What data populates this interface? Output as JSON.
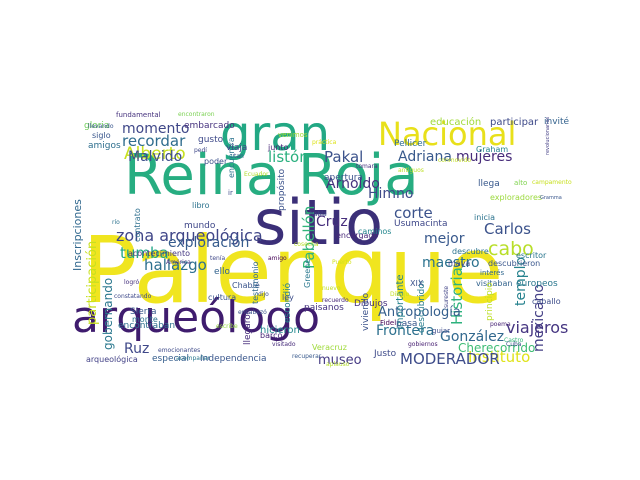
{
  "word_cloud": {
    "words": [
      {
        "text": "Palenque",
        "color": "#f0e51f"
      },
      {
        "text": "Reina Roja",
        "color": "#27ad81"
      },
      {
        "text": "sitio",
        "color": "#3b2f78"
      },
      {
        "text": "gran",
        "color": "#22a884"
      },
      {
        "text": "Nacional",
        "color": "#e8e01a"
      },
      {
        "text": "arqueólogo",
        "color": "#3f1c6e"
      },
      {
        "text": "zona arqueológica",
        "color": "#404688"
      },
      {
        "text": "Alberto",
        "color": "#c7e020"
      },
      {
        "text": "Malvido",
        "color": "#3d4e8a"
      },
      {
        "text": "listón",
        "color": "#2ab07f"
      },
      {
        "text": "Pakal",
        "color": "#3b528b"
      },
      {
        "text": "momento",
        "color": "#3f4788"
      },
      {
        "text": "recordar",
        "color": "#2f6c8e"
      },
      {
        "text": "Adriana",
        "color": "#38598c"
      },
      {
        "text": "mujeres",
        "color": "#472c7a"
      },
      {
        "text": "Arnoldo",
        "color": "#46327e"
      },
      {
        "text": "Himno",
        "color": "#3e4989"
      },
      {
        "text": "Cruz",
        "color": "#472f7d"
      },
      {
        "text": "corte",
        "color": "#3b528b"
      },
      {
        "text": "hallazgo",
        "color": "#2d708e"
      },
      {
        "text": "tumba",
        "color": "#21a685"
      },
      {
        "text": "exploración",
        "color": "#365c8d"
      },
      {
        "text": "Historia",
        "color": "#2db27d"
      },
      {
        "text": "Pabellón",
        "color": "#31b57b"
      },
      {
        "text": "Carlos",
        "color": "#3b528b"
      },
      {
        "text": "cabo",
        "color": "#b8de29"
      },
      {
        "text": "mejor",
        "color": "#38588c"
      },
      {
        "text": "templo",
        "color": "#26828e"
      },
      {
        "text": "mexicano",
        "color": "#433e85"
      },
      {
        "text": "maestro",
        "color": "#2c728e"
      },
      {
        "text": "gobernando",
        "color": "#2a788e"
      },
      {
        "text": "Ruz",
        "color": "#3f4889"
      },
      {
        "text": "Frontera",
        "color": "#2d708e"
      },
      {
        "text": "Antropología",
        "color": "#355f8d"
      },
      {
        "text": "González",
        "color": "#31688e"
      },
      {
        "text": "Cherecorrido",
        "color": "#3dbc74"
      },
      {
        "text": "viajeros",
        "color": "#453581"
      },
      {
        "text": "Instituto",
        "color": "#dfe318"
      },
      {
        "text": "MODERADOR",
        "color": "#3e4c8a"
      },
      {
        "text": "museo",
        "color": "#443983"
      },
      {
        "text": "participación",
        "color": "#c8e020"
      },
      {
        "text": "Inscripciones",
        "color": "#31688e"
      },
      {
        "text": "embarcado",
        "color": "#46327e"
      },
      {
        "text": "educación",
        "color": "#a0da39"
      },
      {
        "text": "participar",
        "color": "#3e4a89"
      },
      {
        "text": "invité",
        "color": "#33628d"
      },
      {
        "text": "gloria",
        "color": "#6ece58"
      },
      {
        "text": "siglo",
        "color": "#39568c"
      },
      {
        "text": "amigos",
        "color": "#2e6f8e"
      },
      {
        "text": "fundamental",
        "color": "#46337e"
      },
      {
        "text": "gusto",
        "color": "#3e4989"
      },
      {
        "text": "encuentra",
        "color": "#2c738e"
      },
      {
        "text": "venimos",
        "color": "#a5db36"
      },
      {
        "text": "Pellicer",
        "color": "#2f6c8e"
      },
      {
        "text": "viaja",
        "color": "#414487"
      },
      {
        "text": "poder",
        "color": "#3c508b"
      },
      {
        "text": "apertura",
        "color": "#3b528b"
      },
      {
        "text": "Usumacinta",
        "color": "#3f4889"
      },
      {
        "text": "inicia",
        "color": "#2c738e"
      },
      {
        "text": "exploradores",
        "color": "#9bd93c"
      },
      {
        "text": "Graham",
        "color": "#25848e"
      },
      {
        "text": "llega",
        "color": "#38588c"
      },
      {
        "text": "propósito",
        "color": "#3b528b"
      },
      {
        "text": "encargado",
        "color": "#482979"
      },
      {
        "text": "Dibujos",
        "color": "#46327e"
      },
      {
        "text": "caminos",
        "color": "#24878e"
      },
      {
        "text": "Chablé",
        "color": "#3a548c"
      },
      {
        "text": "escondió",
        "color": "#27808e"
      },
      {
        "text": "llegaron",
        "color": "#472d7b"
      },
      {
        "text": "paisanos",
        "color": "#463480"
      },
      {
        "text": "Sierra",
        "color": "#38598c"
      },
      {
        "text": "monte",
        "color": "#2c738e"
      },
      {
        "text": "encontraban",
        "color": "#2e6e8e"
      },
      {
        "text": "hicieron",
        "color": "#23898e"
      },
      {
        "text": "visitaban",
        "color": "#33638d"
      },
      {
        "text": "descubrieron",
        "color": "#39568c"
      },
      {
        "text": "descubridor",
        "color": "#287d8e"
      },
      {
        "text": "Justo",
        "color": "#3e4a89"
      },
      {
        "text": "especial",
        "color": "#355e8d"
      },
      {
        "text": "Independencia",
        "color": "#39568c"
      },
      {
        "text": "arqueológica",
        "color": "#424186"
      },
      {
        "text": "europeos",
        "color": "#2a778e"
      },
      {
        "text": "principio",
        "color": "#bddf26"
      },
      {
        "text": "caballo",
        "color": "#3d4d8a"
      },
      {
        "text": "acontecimiento",
        "color": "#453882"
      },
      {
        "text": "ello",
        "color": "#33638d"
      },
      {
        "text": "mundo",
        "color": "#3f4788"
      },
      {
        "text": "libro",
        "color": "#2c728e"
      },
      {
        "text": "contrato",
        "color": "#2e6f8e"
      },
      {
        "text": "cultura",
        "color": "#3a548c"
      },
      {
        "text": "barco",
        "color": "#482576"
      },
      {
        "text": "ley",
        "color": "#3d4e8a"
      },
      {
        "text": "viviendo",
        "color": "#3b528b"
      },
      {
        "text": "importante",
        "color": "#26828e"
      },
      {
        "text": "maya",
        "color": "#3f4889"
      },
      {
        "text": "descubre",
        "color": "#2c738e"
      },
      {
        "text": "escritor",
        "color": "#2a768e"
      },
      {
        "text": "interés",
        "color": "#31688e"
      },
      {
        "text": "pasa",
        "color": "#38588c"
      },
      {
        "text": "Fidel",
        "color": "#440154"
      },
      {
        "text": "guiar",
        "color": "#3e4c8a"
      },
      {
        "text": "poema",
        "color": "#482475"
      },
      {
        "text": "Castro",
        "color": "#35b779"
      },
      {
        "text": "XIX",
        "color": "#3b528b"
      },
      {
        "text": "tomara",
        "color": "#46327e"
      },
      {
        "text": "Veracruz",
        "color": "#9fda3a"
      },
      {
        "text": "gobiernos",
        "color": "#482173"
      },
      {
        "text": "pedí",
        "color": "#3f4889"
      },
      {
        "text": "tan",
        "color": "#3e4c8a"
      },
      {
        "text": "junto",
        "color": "#482878"
      },
      {
        "text": "Greene",
        "color": "#2a788e"
      },
      {
        "text": "testimonio",
        "color": "#31688e"
      },
      {
        "text": "habla",
        "color": "#3e4989"
      },
      {
        "text": "recuerdo",
        "color": "#482878"
      },
      {
        "text": "dijo",
        "color": "#3b528b"
      },
      {
        "text": "logró",
        "color": "#46327e"
      },
      {
        "text": "conmovido",
        "color": "#c2df23"
      },
      {
        "text": "llevando",
        "color": "#39568c"
      },
      {
        "text": "encontraron",
        "color": "#7ad151"
      },
      {
        "text": "acompañar",
        "color": "#2a788e"
      },
      {
        "text": "emocionantes",
        "color": "#3e4a89"
      },
      {
        "text": "encabezó",
        "color": "#3b528b"
      },
      {
        "text": "escribe",
        "color": "#95d840"
      },
      {
        "text": "visitado",
        "color": "#472c7a"
      },
      {
        "text": "recuperar",
        "color": "#38598c"
      },
      {
        "text": "aplauso",
        "color": "#b5de2b"
      },
      {
        "text": "constatando",
        "color": "#3e4989"
      },
      {
        "text": "América",
        "color": "#46327e"
      },
      {
        "text": "Gramma",
        "color": "#39568c"
      },
      {
        "text": "revolucionarios",
        "color": "#433e85"
      },
      {
        "text": "campamento",
        "color": "#c8e020"
      },
      {
        "text": "antiguos",
        "color": "#bddf26"
      },
      {
        "text": "alto",
        "color": "#7fd34e"
      },
      {
        "text": "cosecha",
        "color": "#b8de29"
      },
      {
        "text": "Dibujo",
        "color": "#c5e021"
      },
      {
        "text": "práctica",
        "color": "#dde318"
      },
      {
        "text": "ir",
        "color": "#3e4c8a"
      },
      {
        "text": "río",
        "color": "#2c728e"
      },
      {
        "text": "Cuba",
        "color": "#3d4e8a"
      },
      {
        "text": "sureste",
        "color": "#414487"
      },
      {
        "text": "Ecuador",
        "color": "#b0dd2f"
      },
      {
        "text": "Puerto",
        "color": "#d2e21b"
      },
      {
        "text": "nuevo",
        "color": "#c0df25"
      },
      {
        "text": "tenía",
        "color": "#3f4788"
      },
      {
        "text": "amigo",
        "color": "#440154"
      }
    ]
  }
}
